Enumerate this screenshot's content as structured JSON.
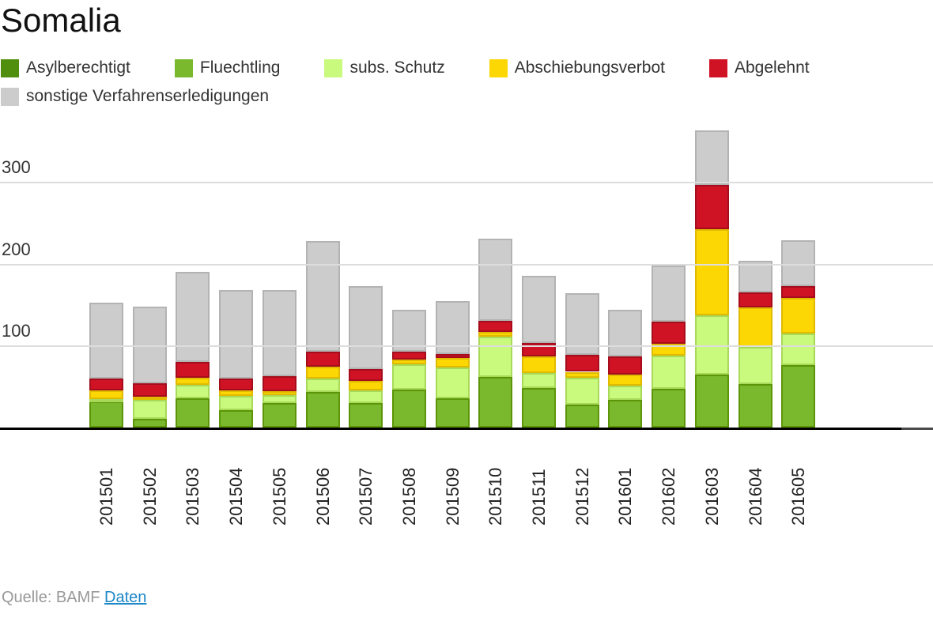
{
  "title": "Somalia",
  "legend": {
    "items": [
      {
        "label": "Asylberechtigt",
        "color": "#4f8f0d",
        "border": "#3f7309"
      },
      {
        "label": "Fluechtling",
        "color": "#7ab82e",
        "border": "#5c9608"
      },
      {
        "label": "subs. Schutz",
        "color": "#c9fa7d",
        "border": "#a8d958"
      },
      {
        "label": "Abschiebungsverbot",
        "color": "#fcd703",
        "border": "#e0ba00"
      },
      {
        "label": "Abgelehnt",
        "color": "#d01225",
        "border": "#a50d1d"
      },
      {
        "label": "sonstige Verfahrenserledigungen",
        "color": "#cccccc",
        "border": "#b3b3b3"
      }
    ]
  },
  "y_axis": {
    "ticks": [
      100,
      200,
      300
    ]
  },
  "chart_data": {
    "type": "bar",
    "stacked": true,
    "title": "Somalia",
    "xlabel": "",
    "ylabel": "",
    "ylim": [
      0,
      380
    ],
    "yticks": [
      100,
      200,
      300
    ],
    "grid": true,
    "legend_position": "top",
    "categories": [
      "201501",
      "201502",
      "201503",
      "201504",
      "201505",
      "201506",
      "201507",
      "201508",
      "201509",
      "201510",
      "201511",
      "201512",
      "201601",
      "201602",
      "201603",
      "201604",
      "201605"
    ],
    "series": [
      {
        "name": "Asylberechtigt",
        "color": "#4f8f0d",
        "border": "#3f7309",
        "values": [
          0,
          0,
          0,
          0,
          0,
          0,
          0,
          0,
          0,
          0,
          0,
          0,
          0,
          0,
          0,
          0,
          0
        ]
      },
      {
        "name": "Fluechtling",
        "color": "#7ab82e",
        "border": "#5c9608",
        "values": [
          32,
          11,
          36,
          21,
          30,
          43,
          30,
          46,
          36,
          62,
          48,
          28,
          34,
          47,
          65,
          53,
          76
        ]
      },
      {
        "name": "subs. Schutz",
        "color": "#c9fa7d",
        "border": "#a8d958",
        "values": [
          3,
          23,
          16,
          18,
          10,
          17,
          15,
          31,
          37,
          49,
          19,
          33,
          17,
          41,
          72,
          45,
          39
        ]
      },
      {
        "name": "Abschiebungsverbot",
        "color": "#fcd703",
        "border": "#e0ba00",
        "values": [
          10,
          4,
          9,
          6,
          4,
          14,
          12,
          6,
          12,
          6,
          20,
          7,
          14,
          14,
          105,
          49,
          43
        ]
      },
      {
        "name": "Abgelehnt",
        "color": "#d01225",
        "border": "#a50d1d",
        "values": [
          15,
          16,
          19,
          15,
          19,
          19,
          14,
          10,
          5,
          13,
          16,
          21,
          22,
          27,
          54,
          18,
          15
        ]
      },
      {
        "name": "sonstige Verfahrenserledigungen",
        "color": "#cccccc",
        "border": "#b3b3b3",
        "values": [
          92,
          94,
          110,
          108,
          105,
          135,
          102,
          51,
          64,
          101,
          82,
          75,
          57,
          69,
          67,
          39,
          56
        ]
      }
    ]
  },
  "footer": {
    "source_prefix": "Quelle: BAMF",
    "link_label": "Daten"
  }
}
